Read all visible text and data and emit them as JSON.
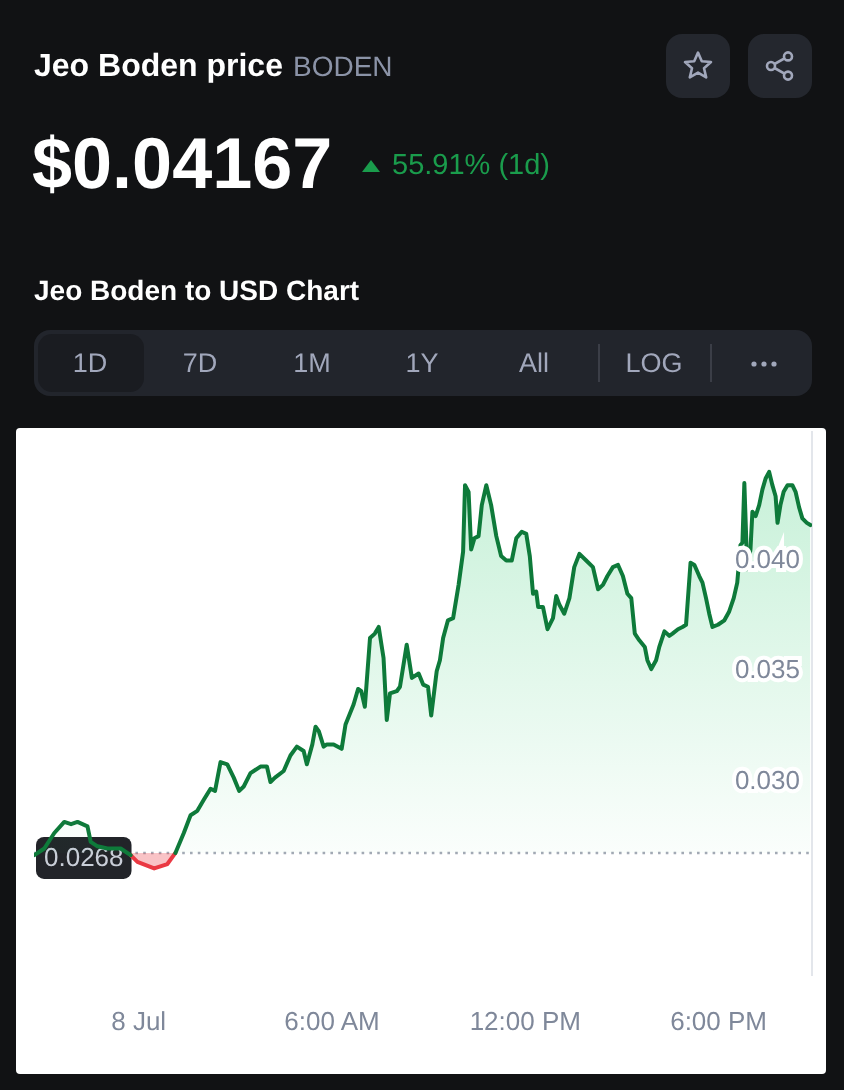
{
  "chart_data": {
    "type": "area",
    "title": "Jeo Boden price",
    "subtitle": "BODEN",
    "annotations": [
      "$0.04167",
      "55.91% (1d)",
      "Jeo Boden to USD Chart",
      "1D",
      "7D",
      "1M",
      "1Y",
      "All",
      "LOG"
    ],
    "x": [
      -3.24,
      -2.93,
      -2.62,
      -2.31,
      -2.1,
      -1.9,
      -1.59,
      -1.49,
      -1.28,
      -0.97,
      -0.56,
      -0.25,
      -0.04,
      0.48,
      0.89,
      1.14,
      1.4,
      1.61,
      1.82,
      2.02,
      2.23,
      2.37,
      2.54,
      2.75,
      2.95,
      3.12,
      3.26,
      3.47,
      3.78,
      3.98,
      4.09,
      4.23,
      4.5,
      4.71,
      4.91,
      5.12,
      5.22,
      5.39,
      5.49,
      5.59,
      5.74,
      5.84,
      6.05,
      6.3,
      6.42,
      6.67,
      6.81,
      6.91,
      7.02,
      7.18,
      7.33,
      7.45,
      7.6,
      7.7,
      7.8,
      8.01,
      8.11,
      8.32,
      8.48,
      8.69,
      8.83,
      8.98,
      9.08,
      9.25,
      9.35,
      9.45,
      9.6,
      9.76,
      9.93,
      10.07,
      10.13,
      10.24,
      10.32,
      10.42,
      10.55,
      10.65,
      10.79,
      10.94,
      11.1,
      11.25,
      11.41,
      11.58,
      11.72,
      11.89,
      12.03,
      12.14,
      12.24,
      12.34,
      12.4,
      12.55,
      12.69,
      12.86,
      12.96,
      13.06,
      13.21,
      13.37,
      13.52,
      13.68,
      13.89,
      14.1,
      14.26,
      14.41,
      14.55,
      14.72,
      14.88,
      15.03,
      15.17,
      15.29,
      15.4,
      15.54,
      15.71,
      15.79,
      15.91,
      16.06,
      16.16,
      16.32,
      16.47,
      16.57,
      16.74,
      16.88,
      16.99,
      17.13,
      17.25,
      17.4,
      17.5,
      17.61,
      17.71,
      17.81,
      17.98,
      18.18,
      18.33,
      18.47,
      18.58,
      18.68,
      18.74,
      18.8,
      18.89,
      18.99,
      19.05,
      19.15,
      19.26,
      19.36,
      19.46,
      19.57,
      19.67,
      19.77,
      19.83,
      19.92,
      20.02,
      20.14,
      20.29,
      20.39,
      20.5,
      20.6,
      20.74,
      20.85
    ],
    "series": [
      {
        "color": "#0e7a3a",
        "values": [
          0.0267,
          0.027,
          0.0277,
          0.0282,
          0.0281,
          0.0282,
          0.028,
          0.0273,
          0.0271,
          0.027,
          0.027,
          0.0267,
          null,
          null,
          null,
          0.0268,
          0.0277,
          0.0285,
          0.0287,
          0.0292,
          0.0297,
          0.0296,
          0.0309,
          0.0308,
          0.0302,
          0.0296,
          0.0298,
          0.0304,
          0.0307,
          0.0307,
          0.03,
          0.0302,
          0.0305,
          0.0312,
          0.0316,
          0.0314,
          0.0308,
          0.0317,
          0.0325,
          0.0323,
          0.0316,
          0.0317,
          0.0317,
          0.0315,
          0.0326,
          0.0335,
          0.0342,
          0.0341,
          0.0334,
          0.0365,
          0.0367,
          0.037,
          0.0356,
          0.0328,
          0.034,
          0.0341,
          0.0343,
          0.0362,
          0.0347,
          0.0349,
          0.0344,
          0.0343,
          0.033,
          0.035,
          0.0355,
          0.0365,
          0.0373,
          0.0374,
          0.0389,
          0.0404,
          0.0434,
          0.0431,
          0.0405,
          0.041,
          0.0411,
          0.0425,
          0.0434,
          0.0425,
          0.0411,
          0.0402,
          0.04,
          0.04,
          0.041,
          0.0413,
          0.0412,
          0.0402,
          0.0385,
          0.0386,
          0.0379,
          0.0379,
          0.0369,
          0.0374,
          0.0384,
          0.038,
          0.0376,
          0.0383,
          0.0397,
          0.0403,
          0.04,
          0.0397,
          0.0387,
          0.0389,
          0.0393,
          0.0397,
          0.0398,
          0.0393,
          0.0385,
          0.0383,
          0.0367,
          0.0364,
          0.0361,
          0.0355,
          0.0351,
          0.0355,
          0.0361,
          0.0368,
          0.0366,
          0.0367,
          0.0369,
          0.037,
          0.0371,
          0.0399,
          0.0398,
          0.0393,
          0.039,
          0.0383,
          0.0376,
          0.037,
          0.0371,
          0.0373,
          0.0377,
          0.0383,
          0.039,
          0.0407,
          0.0408,
          0.0435,
          0.0396,
          0.0405,
          0.0422,
          0.042,
          0.0425,
          0.0432,
          0.0437,
          0.044,
          0.0434,
          0.0429,
          0.0417,
          0.0425,
          0.0431,
          0.0434,
          0.0434,
          0.0431,
          0.0424,
          0.0419,
          0.0417,
          0.0416
        ]
      },
      {
        "color": "#ea3943",
        "x": [
          -0.25,
          -0.04,
          0.48,
          0.89,
          1.14
        ],
        "values": [
          0.0267,
          0.0264,
          0.0261,
          0.0263,
          0.0268
        ]
      }
    ],
    "xlim": [
      -3.25,
      20.9
    ],
    "xticks": [
      {
        "value": 0,
        "label": "8 Jul"
      },
      {
        "value": 6,
        "label": "6:00 AM"
      },
      {
        "value": 12,
        "label": "12:00 PM"
      },
      {
        "value": 18,
        "label": "6:00 PM"
      }
    ],
    "ylim": [
      0.0213,
      0.0458
    ],
    "yticks": [
      {
        "value": 0.03,
        "label": "0.030"
      },
      0.035,
      {
        "value": 0.04,
        "label": "0.040"
      }
    ],
    "ref_lines": [
      {
        "axis": "y",
        "value": 0.0268,
        "label": "0.0268",
        "line_style": "dotted",
        "color": "#a3a9b5"
      }
    ],
    "marker": "none"
  }
}
